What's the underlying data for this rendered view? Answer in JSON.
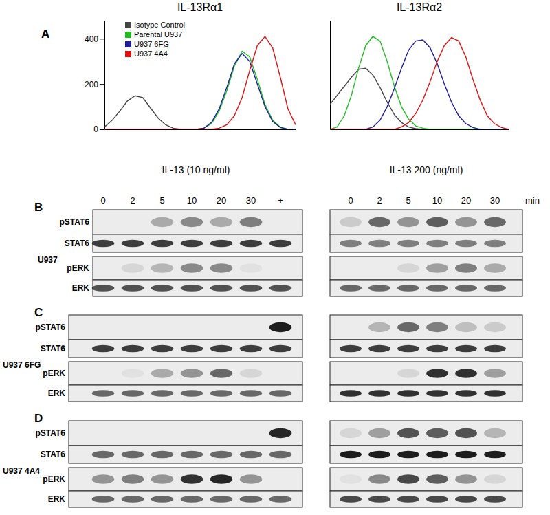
{
  "panel_a": {
    "letter": "A"
  },
  "chart_data": [
    {
      "type": "line",
      "title": "IL-13Rα1",
      "x": [
        0,
        4,
        8,
        12,
        16,
        20,
        24,
        28,
        32,
        36,
        40,
        44,
        48,
        52,
        56,
        60,
        64,
        68,
        72,
        76,
        80,
        84,
        88,
        92,
        96,
        100
      ],
      "xlim": [
        0,
        100
      ],
      "ylim": [
        0,
        480
      ],
      "yticks": [
        0,
        200,
        400
      ],
      "tick_labels": "y",
      "legend": "upper left",
      "series": [
        {
          "name": "Isotype Control",
          "color": "#444444",
          "values": [
            10,
            40,
            80,
            125,
            148,
            140,
            95,
            50,
            20,
            5,
            0,
            0,
            0,
            0,
            0,
            0,
            0,
            0,
            0,
            0,
            0,
            0,
            0,
            0,
            0,
            0
          ]
        },
        {
          "name": "Parental U937",
          "color": "#22bb22",
          "values": [
            0,
            0,
            0,
            0,
            0,
            0,
            0,
            0,
            0,
            0,
            0,
            0,
            0,
            5,
            25,
            80,
            170,
            280,
            345,
            320,
            220,
            110,
            40,
            10,
            0,
            0
          ]
        },
        {
          "name": "U937 6FG",
          "color": "#1c1c9c",
          "values": [
            0,
            0,
            0,
            0,
            0,
            0,
            0,
            0,
            0,
            0,
            0,
            0,
            0,
            5,
            30,
            90,
            185,
            290,
            335,
            300,
            200,
            100,
            35,
            8,
            0,
            0
          ]
        },
        {
          "name": "U937 4A4",
          "color": "#dd1111",
          "values": [
            0,
            0,
            0,
            0,
            0,
            0,
            0,
            0,
            0,
            0,
            0,
            0,
            0,
            0,
            0,
            5,
            20,
            60,
            140,
            260,
            370,
            410,
            360,
            230,
            90,
            20
          ]
        }
      ]
    },
    {
      "type": "line",
      "title": "IL-13Rα2",
      "x": [
        0,
        4,
        8,
        12,
        16,
        20,
        24,
        28,
        32,
        36,
        40,
        44,
        48,
        52,
        56,
        60,
        64,
        68,
        72,
        76,
        80,
        84,
        88,
        92,
        96,
        100
      ],
      "xlim": [
        0,
        100
      ],
      "ylim": [
        0,
        480
      ],
      "tick_labels": false,
      "series": [
        {
          "color": "#444444",
          "values": [
            110,
            150,
            190,
            230,
            265,
            270,
            240,
            185,
            120,
            65,
            30,
            10,
            3,
            0,
            0,
            0,
            0,
            0,
            0,
            0,
            0,
            0,
            0,
            0,
            0,
            0
          ]
        },
        {
          "color": "#22bb22",
          "values": [
            0,
            10,
            60,
            150,
            270,
            370,
            410,
            390,
            300,
            190,
            100,
            45,
            15,
            5,
            0,
            0,
            0,
            0,
            0,
            0,
            0,
            0,
            0,
            0,
            0,
            0
          ]
        },
        {
          "color": "#1c1c9c",
          "values": [
            0,
            0,
            0,
            0,
            0,
            0,
            10,
            40,
            100,
            180,
            270,
            350,
            390,
            395,
            360,
            290,
            200,
            120,
            60,
            25,
            8,
            0,
            0,
            0,
            0,
            0
          ]
        },
        {
          "color": "#dd1111",
          "values": [
            0,
            0,
            0,
            0,
            0,
            0,
            0,
            0,
            0,
            0,
            10,
            30,
            70,
            130,
            210,
            300,
            370,
            405,
            390,
            320,
            220,
            130,
            60,
            25,
            8,
            0
          ]
        }
      ]
    }
  ],
  "blots": {
    "conditions": [
      {
        "title": "IL-13  (10 ng/ml)",
        "lanes": [
          "0",
          "2",
          "5",
          "10",
          "20",
          "30",
          "+"
        ]
      },
      {
        "title": "IL-13 200 (ng/ml)",
        "lanes": [
          "0",
          "2",
          "5",
          "10",
          "20",
          "30"
        ],
        "unit": "min"
      }
    ],
    "panels": [
      {
        "letter": "B",
        "cell_line": "U937",
        "rows": [
          "pSTAT6",
          "STAT6",
          "pERK",
          "ERK"
        ],
        "left": [
          [
            0,
            0,
            0.3,
            0.45,
            0.3,
            0.5,
            0
          ],
          [
            0.8,
            0.8,
            0.8,
            0.8,
            0.8,
            0.8,
            0.8
          ],
          [
            0,
            0.1,
            0.25,
            0.45,
            0.45,
            0.05,
            0
          ],
          [
            0.7,
            0.7,
            0.7,
            0.7,
            0.7,
            0.7,
            0.7
          ]
        ],
        "right": [
          [
            0.15,
            0.6,
            0.4,
            0.65,
            0.4,
            0.6
          ],
          [
            0.5,
            0.5,
            0.5,
            0.5,
            0.5,
            0.5
          ],
          [
            0,
            0,
            0.1,
            0.35,
            0.5,
            0.3
          ],
          [
            0.6,
            0.6,
            0.6,
            0.6,
            0.6,
            0.6
          ]
        ]
      },
      {
        "letter": "C",
        "cell_line": "U937 6FG",
        "rows": [
          "pSTAT6",
          "STAT6",
          "pERK",
          "ERK"
        ],
        "left": [
          [
            0,
            0,
            0,
            0,
            0,
            0,
            0.95
          ],
          [
            0.8,
            0.8,
            0.8,
            0.8,
            0.8,
            0.8,
            0.8
          ],
          [
            0,
            0.05,
            0.3,
            0.4,
            0.6,
            0.1,
            0
          ],
          [
            0.6,
            0.6,
            0.6,
            0.6,
            0.6,
            0.6,
            0.6
          ]
        ],
        "right": [
          [
            0,
            0.25,
            0.6,
            0.5,
            0.2,
            0.15
          ],
          [
            0.8,
            0.8,
            0.8,
            0.8,
            0.8,
            0.8
          ],
          [
            0,
            0,
            0.1,
            0.85,
            0.85,
            0.35
          ],
          [
            0.85,
            0.85,
            0.85,
            0.85,
            0.85,
            0.85
          ]
        ]
      },
      {
        "letter": "D",
        "cell_line": "U937 4A4",
        "rows": [
          "pSTAT6",
          "STAT6",
          "pERK",
          "ERK"
        ],
        "left": [
          [
            0,
            0,
            0,
            0,
            0,
            0,
            0.9
          ],
          [
            0.6,
            0.6,
            0.6,
            0.6,
            0.6,
            0.6,
            0.6
          ],
          [
            0.4,
            0.5,
            0.4,
            0.85,
            0.9,
            0.4,
            0
          ],
          [
            0.6,
            0.6,
            0.6,
            0.6,
            0.6,
            0.6,
            0.6
          ]
        ],
        "right": [
          [
            0.1,
            0.35,
            0.7,
            0.65,
            0.7,
            0.25
          ],
          [
            0.95,
            0.95,
            0.95,
            0.95,
            0.95,
            0.95
          ],
          [
            0.05,
            0.45,
            0.75,
            0.65,
            0.4,
            0.1
          ],
          [
            0.75,
            0.75,
            0.75,
            0.75,
            0.75,
            0.75
          ]
        ]
      }
    ]
  }
}
